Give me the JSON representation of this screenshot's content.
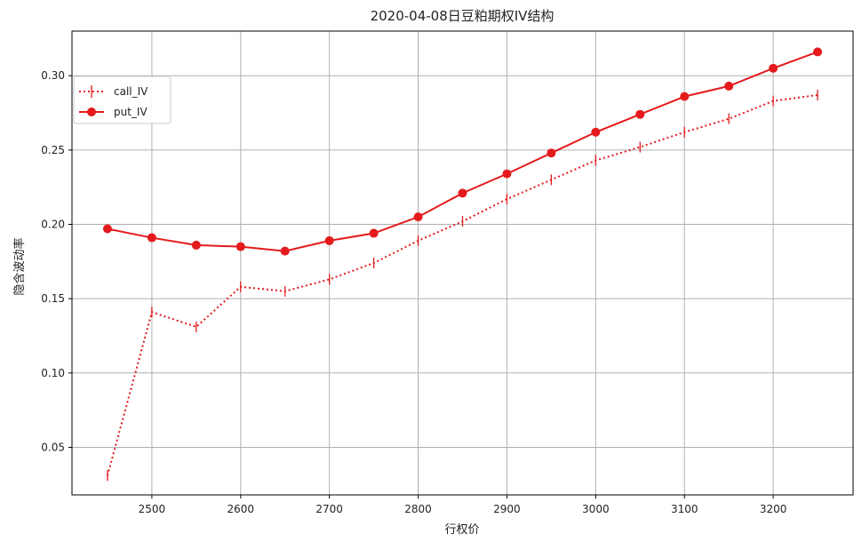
{
  "chart_data": {
    "type": "line",
    "title": "2020-04-08日豆粕期权IV结构",
    "xlabel": "行权价",
    "ylabel": "隐含波动率",
    "x": [
      2450,
      2500,
      2550,
      2600,
      2650,
      2700,
      2750,
      2800,
      2850,
      2900,
      2950,
      3000,
      3050,
      3100,
      3150,
      3200,
      3250
    ],
    "series": [
      {
        "name": "call_IV",
        "style": "dotted",
        "marker": "vertical-tick",
        "color": "#e41a1c",
        "values": [
          0.031,
          0.141,
          0.131,
          0.158,
          0.155,
          0.163,
          0.174,
          0.189,
          0.202,
          0.217,
          0.23,
          0.243,
          0.252,
          0.262,
          0.271,
          0.283,
          0.287
        ]
      },
      {
        "name": "put_IV",
        "style": "solid",
        "marker": "circle",
        "color": "#e41a1c",
        "values": [
          0.197,
          0.191,
          0.186,
          0.185,
          0.182,
          0.189,
          0.194,
          0.205,
          0.221,
          0.234,
          0.248,
          0.262,
          0.274,
          0.286,
          0.293,
          0.305,
          0.316
        ]
      }
    ],
    "xlim": [
      2410,
      3290
    ],
    "ylim": [
      0.018,
      0.33
    ],
    "xticks": [
      2500,
      2600,
      2700,
      2800,
      2900,
      3000,
      3100,
      3200
    ],
    "yticks": [
      0.05,
      0.1,
      0.15,
      0.2,
      0.25,
      0.3
    ],
    "ytick_labels": [
      "0.05",
      "0.10",
      "0.15",
      "0.20",
      "0.25",
      "0.30"
    ],
    "grid": true,
    "legend_position": "upper-left"
  }
}
